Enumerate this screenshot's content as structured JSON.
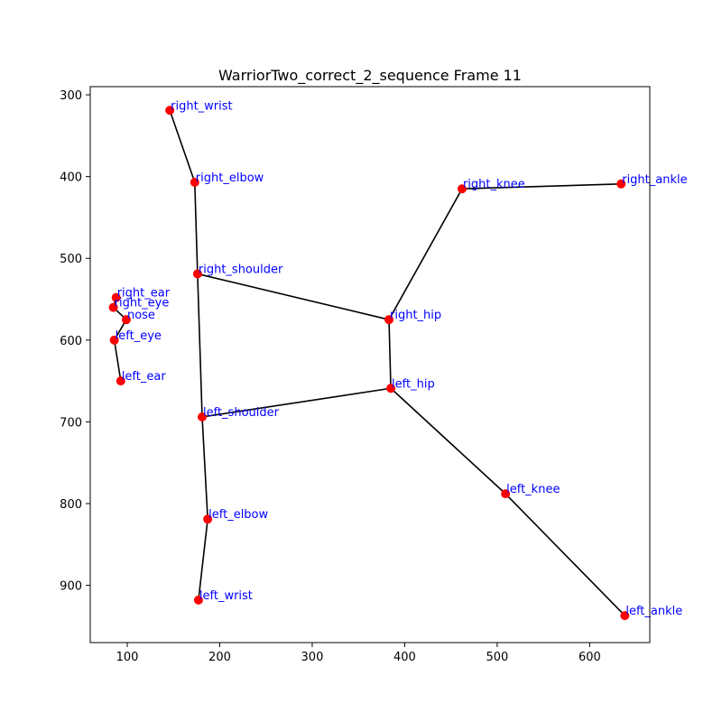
{
  "chart_data": {
    "type": "scatter",
    "title": "WarriorTwo_correct_2_sequence Frame 11",
    "xlabel": "",
    "ylabel": "",
    "xlim": [
      60,
      665
    ],
    "ylim": [
      970,
      290
    ],
    "y_inverted": true,
    "x_ticks": [
      100,
      200,
      300,
      400,
      500,
      600
    ],
    "y_ticks": [
      300,
      400,
      500,
      600,
      700,
      800,
      900
    ],
    "grid": false,
    "point_color": "#ff0000",
    "line_color": "#000000",
    "label_color": "#0000ff",
    "points": [
      {
        "name": "nose",
        "x": 99,
        "y": 575
      },
      {
        "name": "right_eye",
        "x": 85,
        "y": 560
      },
      {
        "name": "left_eye",
        "x": 86,
        "y": 600
      },
      {
        "name": "right_ear",
        "x": 88,
        "y": 548
      },
      {
        "name": "left_ear",
        "x": 93,
        "y": 650
      },
      {
        "name": "right_shoulder",
        "x": 176,
        "y": 519
      },
      {
        "name": "left_shoulder",
        "x": 181,
        "y": 694
      },
      {
        "name": "right_elbow",
        "x": 173,
        "y": 407
      },
      {
        "name": "left_elbow",
        "x": 187,
        "y": 819
      },
      {
        "name": "right_wrist",
        "x": 146,
        "y": 319
      },
      {
        "name": "left_wrist",
        "x": 177,
        "y": 918
      },
      {
        "name": "right_hip",
        "x": 383,
        "y": 575
      },
      {
        "name": "left_hip",
        "x": 385,
        "y": 659
      },
      {
        "name": "right_knee",
        "x": 462,
        "y": 415
      },
      {
        "name": "left_knee",
        "x": 509,
        "y": 788
      },
      {
        "name": "right_ankle",
        "x": 634,
        "y": 409
      },
      {
        "name": "left_ankle",
        "x": 638,
        "y": 937
      }
    ],
    "connections": [
      [
        "right_wrist",
        "right_elbow"
      ],
      [
        "right_elbow",
        "right_shoulder"
      ],
      [
        "right_shoulder",
        "left_shoulder"
      ],
      [
        "left_shoulder",
        "left_elbow"
      ],
      [
        "left_elbow",
        "left_wrist"
      ],
      [
        "right_shoulder",
        "right_hip"
      ],
      [
        "left_shoulder",
        "left_hip"
      ],
      [
        "right_hip",
        "left_hip"
      ],
      [
        "right_hip",
        "right_knee"
      ],
      [
        "right_knee",
        "right_ankle"
      ],
      [
        "left_hip",
        "left_knee"
      ],
      [
        "left_knee",
        "left_ankle"
      ],
      [
        "right_ear",
        "right_eye"
      ],
      [
        "right_eye",
        "nose"
      ],
      [
        "nose",
        "left_eye"
      ],
      [
        "left_eye",
        "left_ear"
      ]
    ]
  }
}
